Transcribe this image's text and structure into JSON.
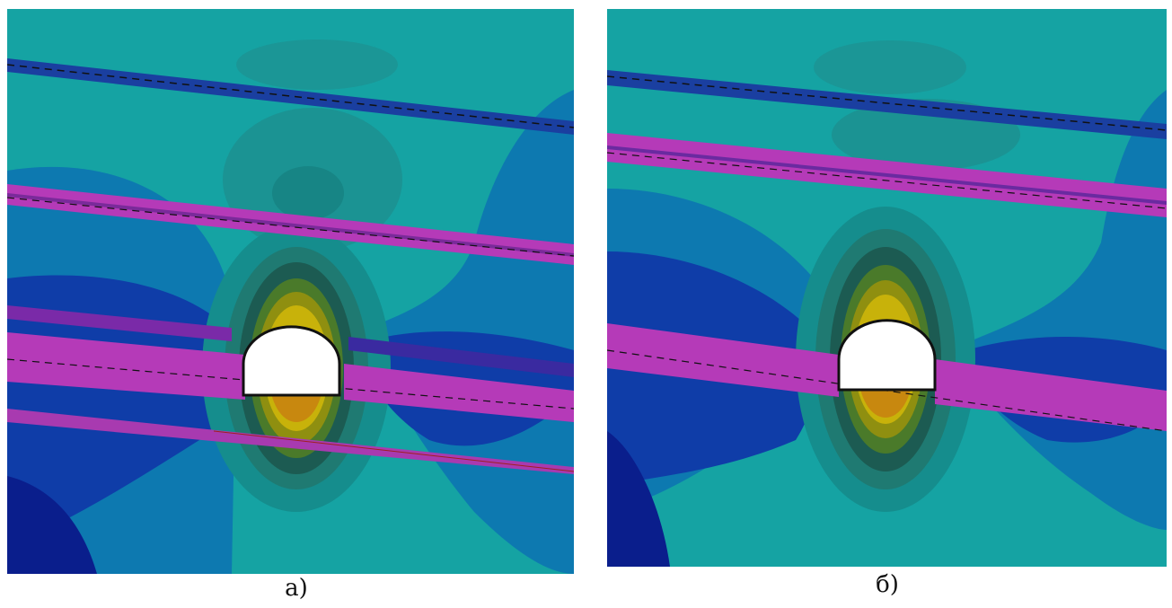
{
  "figure": {
    "panels": [
      {
        "id": "a",
        "caption": "а)"
      },
      {
        "id": "b",
        "caption": "б)"
      }
    ],
    "colors": {
      "background_field": "#15a3a3",
      "medium_field": "#0d79b0",
      "deep_blue": "#0f3da8",
      "dark_navy": "#0a1e8c",
      "fracture_magenta": "#b53ab8",
      "concentration_dark_green": "#1c5b52",
      "concentration_green": "#4a7a2a",
      "concentration_olive": "#8f8f10",
      "concentration_yellow": "#c8b20a",
      "concentration_orange": "#c8880f",
      "opening": "#ffffff"
    }
  }
}
